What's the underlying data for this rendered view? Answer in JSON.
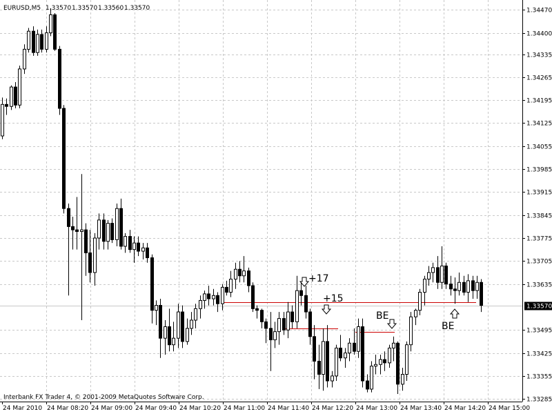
{
  "chart_data": {
    "type": "candlestick",
    "symbol": "EURUSD,M5",
    "header_values": [
      "1.33570",
      "1.33570",
      "1.33560",
      "1.33570"
    ],
    "footer": "Interbank FX Trader 4, © 2001-2009 MetaQuotes Software Corp.",
    "ylim": [
      1.33277,
      1.345
    ],
    "yticks": [
      {
        "value": 1.3447,
        "label": "1.34470"
      },
      {
        "value": 1.344,
        "label": "1.34400"
      },
      {
        "value": 1.34335,
        "label": "1.34335"
      },
      {
        "value": 1.34265,
        "label": "1.34265"
      },
      {
        "value": 1.34195,
        "label": "1.34195"
      },
      {
        "value": 1.34125,
        "label": "1.34125"
      },
      {
        "value": 1.34055,
        "label": "1.34055"
      },
      {
        "value": 1.33985,
        "label": "1.33985"
      },
      {
        "value": 1.33915,
        "label": "1.33915"
      },
      {
        "value": 1.33845,
        "label": "1.33845"
      },
      {
        "value": 1.33775,
        "label": "1.33775"
      },
      {
        "value": 1.33705,
        "label": "1.33705"
      },
      {
        "value": 1.33635,
        "label": "1.33635"
      },
      {
        "value": 1.33495,
        "label": "1.33495"
      },
      {
        "value": 1.33425,
        "label": "1.33425"
      },
      {
        "value": 1.33355,
        "label": "1.33355"
      },
      {
        "value": 1.33285,
        "label": "1.33285"
      }
    ],
    "last_price": {
      "value": 1.3357,
      "label": "1.33570"
    },
    "time_labels": [
      "24 Mar 2010",
      "24 Mar 08:20",
      "24 Mar 09:00",
      "24 Mar 09:40",
      "24 Mar 10:20",
      "24 Mar 11:00",
      "24 Mar 11:40",
      "24 Mar 12:20",
      "24 Mar 13:00",
      "24 Mar 13:40",
      "24 Mar 14:20",
      "24 Mar 15:00"
    ],
    "grid": true,
    "trade_levels": [
      1.3358,
      1.335,
      1.3349
    ],
    "trade_color": "#cc0000",
    "annotations": [
      "+17",
      "+15",
      "BE",
      "BE"
    ],
    "ohlc": [
      [
        1.34086,
        1.34203,
        1.34076,
        1.34182
      ],
      [
        1.34182,
        1.342,
        1.3415,
        1.34176
      ],
      [
        1.34176,
        1.3424,
        1.34165,
        1.34235
      ],
      [
        1.34235,
        1.3425,
        1.3417,
        1.3418
      ],
      [
        1.3418,
        1.343,
        1.3417,
        1.3429
      ],
      [
        1.3429,
        1.34365,
        1.34275,
        1.3435
      ],
      [
        1.3435,
        1.34415,
        1.3434,
        1.34405
      ],
      [
        1.34405,
        1.3442,
        1.3433,
        1.3434
      ],
      [
        1.3434,
        1.3441,
        1.3433,
        1.34395
      ],
      [
        1.34395,
        1.3441,
        1.3434,
        1.3435
      ],
      [
        1.3435,
        1.3442,
        1.3434,
        1.344
      ],
      [
        1.344,
        1.34475,
        1.3439,
        1.34455
      ],
      [
        1.34455,
        1.3446,
        1.34345,
        1.3435
      ],
      [
        1.3435,
        1.3436,
        1.3415,
        1.3417
      ],
      [
        1.3417,
        1.3418,
        1.3385,
        1.33865
      ],
      [
        1.33865,
        1.3388,
        1.336,
        1.3381
      ],
      [
        1.3381,
        1.3384,
        1.3374,
        1.338
      ],
      [
        1.338,
        1.339,
        1.3374,
        1.33795
      ],
      [
        1.33795,
        1.3397,
        1.33525,
        1.338
      ],
      [
        1.338,
        1.3382,
        1.3366,
        1.3373
      ],
      [
        1.3373,
        1.338,
        1.3364,
        1.3367
      ],
      [
        1.3367,
        1.3379,
        1.3363,
        1.33775
      ],
      [
        1.33775,
        1.3385,
        1.3374,
        1.3383
      ],
      [
        1.3383,
        1.3385,
        1.3374,
        1.33765
      ],
      [
        1.33765,
        1.3383,
        1.3374,
        1.3382
      ],
      [
        1.3382,
        1.33835,
        1.3376,
        1.3377
      ],
      [
        1.3377,
        1.3388,
        1.3375,
        1.33865
      ],
      [
        1.33865,
        1.33895,
        1.3374,
        1.3375
      ],
      [
        1.3375,
        1.3379,
        1.3373,
        1.3378
      ],
      [
        1.3378,
        1.338,
        1.3373,
        1.3374
      ],
      [
        1.3374,
        1.3378,
        1.337,
        1.3376
      ],
      [
        1.3376,
        1.3378,
        1.3372,
        1.33735
      ],
      [
        1.33735,
        1.3376,
        1.3371,
        1.33745
      ],
      [
        1.33745,
        1.3376,
        1.337,
        1.33715
      ],
      [
        1.33715,
        1.33725,
        1.33515,
        1.33555
      ],
      [
        1.33555,
        1.33585,
        1.3351,
        1.3357
      ],
      [
        1.3357,
        1.3359,
        1.3341,
        1.3347
      ],
      [
        1.3347,
        1.33525,
        1.3342,
        1.33505
      ],
      [
        1.33505,
        1.3356,
        1.3343,
        1.3345
      ],
      [
        1.3345,
        1.3352,
        1.3343,
        1.3347
      ],
      [
        1.3347,
        1.33575,
        1.3344,
        1.3355
      ],
      [
        1.3355,
        1.3357,
        1.3344,
        1.3346
      ],
      [
        1.3346,
        1.3353,
        1.3345,
        1.335
      ],
      [
        1.335,
        1.3355,
        1.3348,
        1.33525
      ],
      [
        1.33525,
        1.33575,
        1.335,
        1.3356
      ],
      [
        1.3356,
        1.336,
        1.3353,
        1.33585
      ],
      [
        1.33585,
        1.33615,
        1.3356,
        1.33605
      ],
      [
        1.33605,
        1.3363,
        1.3357,
        1.3359
      ],
      [
        1.3359,
        1.3362,
        1.3357,
        1.336
      ],
      [
        1.336,
        1.3361,
        1.3355,
        1.33575
      ],
      [
        1.33575,
        1.33635,
        1.33555,
        1.33625
      ],
      [
        1.33625,
        1.33645,
        1.336,
        1.3361
      ],
      [
        1.3361,
        1.33675,
        1.33595,
        1.3365
      ],
      [
        1.3365,
        1.337,
        1.3362,
        1.3368
      ],
      [
        1.3368,
        1.33705,
        1.3364,
        1.3366
      ],
      [
        1.3366,
        1.3372,
        1.3364,
        1.33675
      ],
      [
        1.33675,
        1.33685,
        1.3361,
        1.3363
      ],
      [
        1.3363,
        1.3364,
        1.3355,
        1.3356
      ],
      [
        1.3356,
        1.3357,
        1.3353,
        1.33555
      ],
      [
        1.33555,
        1.3356,
        1.335,
        1.3352
      ],
      [
        1.3352,
        1.3353,
        1.33455,
        1.335
      ],
      [
        1.335,
        1.3355,
        1.3337,
        1.33465
      ],
      [
        1.33465,
        1.3352,
        1.3344,
        1.3349
      ],
      [
        1.3349,
        1.3355,
        1.3345,
        1.3353
      ],
      [
        1.3353,
        1.3355,
        1.3348,
        1.33495
      ],
      [
        1.33495,
        1.3358,
        1.3347,
        1.3355
      ],
      [
        1.3355,
        1.3357,
        1.335,
        1.3352
      ],
      [
        1.3352,
        1.3366,
        1.335,
        1.33615
      ],
      [
        1.33615,
        1.3364,
        1.3357,
        1.336
      ],
      [
        1.336,
        1.3363,
        1.3353,
        1.3355
      ],
      [
        1.3355,
        1.3356,
        1.3345,
        1.33475
      ],
      [
        1.33475,
        1.3351,
        1.33345,
        1.334
      ],
      [
        1.334,
        1.3345,
        1.33315,
        1.3336
      ],
      [
        1.3336,
        1.335,
        1.3331,
        1.3346
      ],
      [
        1.3346,
        1.3351,
        1.3332,
        1.3334
      ],
      [
        1.3334,
        1.3337,
        1.3332,
        1.33355
      ],
      [
        1.33355,
        1.3345,
        1.3334,
        1.3344
      ],
      [
        1.3344,
        1.3348,
        1.334,
        1.3341
      ],
      [
        1.3341,
        1.3344,
        1.3338,
        1.33425
      ],
      [
        1.33425,
        1.3347,
        1.334,
        1.33455
      ],
      [
        1.33455,
        1.335,
        1.3342,
        1.3343
      ],
      [
        1.3343,
        1.3353,
        1.3341,
        1.33505
      ],
      [
        1.33505,
        1.3353,
        1.3332,
        1.3334
      ],
      [
        1.3334,
        1.3336,
        1.33305,
        1.33315
      ],
      [
        1.33315,
        1.334,
        1.33305,
        1.33385
      ],
      [
        1.33385,
        1.3342,
        1.3336,
        1.3339
      ],
      [
        1.3339,
        1.3342,
        1.3336,
        1.33405
      ],
      [
        1.33405,
        1.3343,
        1.3337,
        1.33395
      ],
      [
        1.33395,
        1.3345,
        1.3338,
        1.3344
      ],
      [
        1.3344,
        1.33475,
        1.334,
        1.33455
      ],
      [
        1.33455,
        1.3346,
        1.333,
        1.3333
      ],
      [
        1.3333,
        1.3338,
        1.3331,
        1.3336
      ],
      [
        1.3336,
        1.3346,
        1.3334,
        1.3345
      ],
      [
        1.3345,
        1.3355,
        1.3343,
        1.33535
      ],
      [
        1.33535,
        1.3356,
        1.3351,
        1.33555
      ],
      [
        1.33555,
        1.3362,
        1.3354,
        1.3361
      ],
      [
        1.3361,
        1.3366,
        1.3357,
        1.3365
      ],
      [
        1.3365,
        1.3369,
        1.3363,
        1.3367
      ],
      [
        1.3367,
        1.337,
        1.3364,
        1.33685
      ],
      [
        1.33685,
        1.3372,
        1.3362,
        1.3364
      ],
      [
        1.3364,
        1.3375,
        1.3362,
        1.3369
      ],
      [
        1.3369,
        1.337,
        1.3362,
        1.33635
      ],
      [
        1.33635,
        1.3366,
        1.336,
        1.3362
      ],
      [
        1.3362,
        1.33655,
        1.33575,
        1.33615
      ],
      [
        1.33615,
        1.3367,
        1.336,
        1.3364
      ],
      [
        1.3364,
        1.3366,
        1.336,
        1.3361
      ],
      [
        1.3361,
        1.33665,
        1.3358,
        1.33645
      ],
      [
        1.33645,
        1.3366,
        1.3359,
        1.33615
      ],
      [
        1.33615,
        1.3366,
        1.3359,
        1.3364
      ],
      [
        1.3364,
        1.3365,
        1.3355,
        1.3357
      ]
    ]
  }
}
